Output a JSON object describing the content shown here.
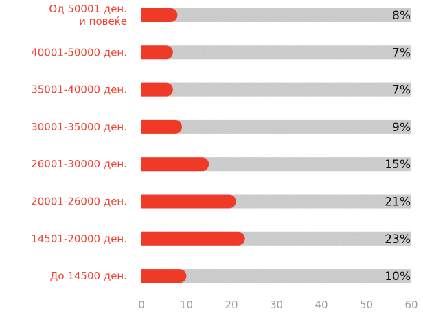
{
  "chart_data": {
    "type": "bar",
    "orientation": "horizontal",
    "categories": [
      [
        "Од 50001 ден.",
        "и повеќе"
      ],
      [
        "40001-50000 ден."
      ],
      [
        "35001-40000 ден."
      ],
      [
        "30001-35000 ден."
      ],
      [
        "26001-30000 ден."
      ],
      [
        "20001-26000 ден."
      ],
      [
        "14501-20000 ден."
      ],
      [
        "До 14500 ден."
      ]
    ],
    "values": [
      8,
      7,
      7,
      9,
      15,
      21,
      23,
      10
    ],
    "value_labels": [
      "8%",
      "7%",
      "7%",
      "9%",
      "15%",
      "21%",
      "23%",
      "10%"
    ],
    "xlim": [
      0,
      60
    ],
    "xticks": [
      0,
      10,
      20,
      30,
      40,
      50,
      60
    ],
    "grid": false,
    "colors": {
      "bar": "#ef3a28",
      "track": "#d4d4d4",
      "category_text": "#f0412f",
      "value_text": "#111111",
      "tick_text": "#9b9b9b"
    }
  }
}
